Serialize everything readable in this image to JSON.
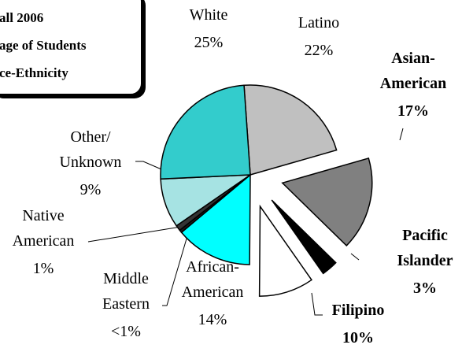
{
  "chart_data": {
    "type": "pie",
    "title": [
      "all 2006",
      "age of Students",
      "ce-Ethnicity"
    ],
    "categories": [
      "Latino",
      "Asian-\nAmerican",
      "Pacific\nIslander",
      "Filipino",
      "African-\nAmerican",
      "Middle\nEastern",
      "Native\nAmerican",
      "Other/\nUnknown",
      "White"
    ],
    "values": [
      22,
      17,
      3,
      10,
      14,
      0.5,
      1,
      9,
      25
    ],
    "value_labels": [
      "22%",
      "17%",
      "3%",
      "10%",
      "14%",
      "<1%",
      "1%",
      "9%",
      "25%"
    ],
    "colors": [
      "#c0c0c0",
      "#808080",
      "#000000",
      "#ffffff",
      "#00ffff",
      "#1a1a1a",
      "#333333",
      "#a6e3e3",
      "#33cccc"
    ],
    "exploded": [
      false,
      true,
      true,
      true,
      false,
      false,
      false,
      false,
      false
    ]
  }
}
